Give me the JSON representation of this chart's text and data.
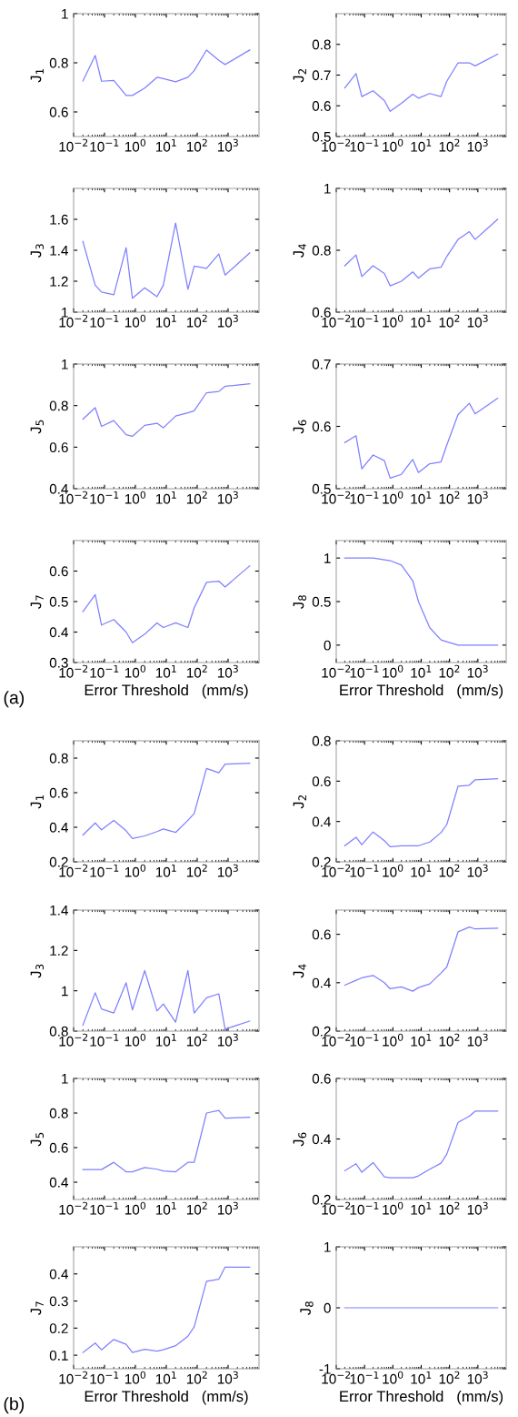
{
  "chart_data": [
    {
      "type": "line",
      "ylabel": "J$_{1}$",
      "log": "x",
      "xlim": [
        0.01,
        10000
      ],
      "ylim": [
        0.5,
        1
      ],
      "yticks": [
        0.6,
        0.8,
        1
      ],
      "xticks": [
        {
          "value": 0.01,
          "label": "10$^{−2}$"
        },
        {
          "value": 0.1,
          "label": "10$^{−1}$"
        },
        {
          "value": 1,
          "label": "10$^{0}$"
        },
        {
          "value": 10,
          "label": "10$^{1}$"
        },
        {
          "value": 100,
          "label": "10$^{2}$"
        },
        {
          "value": 1000,
          "label": "10$^{3}$"
        }
      ],
      "x": [
        0.02,
        0.05,
        0.08,
        0.2,
        0.5,
        0.8,
        2,
        5,
        8,
        20,
        50,
        80,
        200,
        500,
        800,
        5000
      ],
      "series": [
        {
          "color": "#7f7fff",
          "values": [
            0.726,
            0.83,
            0.725,
            0.728,
            0.667,
            0.667,
            0.697,
            0.741,
            0.736,
            0.723,
            0.741,
            0.768,
            0.852,
            0.81,
            0.793,
            0.852
          ]
        }
      ]
    },
    {
      "type": "line",
      "ylabel": "J$_{2}$",
      "log": "x",
      "xlim": [
        0.01,
        10000
      ],
      "ylim": [
        0.5,
        0.9
      ],
      "yticks": [
        0.5,
        0.6,
        0.7,
        0.8
      ],
      "xticks": [
        {
          "value": 0.01,
          "label": "10$^{−2}$"
        },
        {
          "value": 0.1,
          "label": "10$^{−1}$"
        },
        {
          "value": 1,
          "label": "10$^{0}$"
        },
        {
          "value": 10,
          "label": "10$^{1}$"
        },
        {
          "value": 100,
          "label": "10$^{2}$"
        },
        {
          "value": 1000,
          "label": "10$^{3}$"
        }
      ],
      "x": [
        0.02,
        0.05,
        0.08,
        0.2,
        0.5,
        0.8,
        2,
        5,
        8,
        20,
        50,
        80,
        200,
        500,
        800,
        5000
      ],
      "series": [
        {
          "color": "#7f7fff",
          "values": [
            0.658,
            0.705,
            0.63,
            0.649,
            0.617,
            0.582,
            0.608,
            0.638,
            0.625,
            0.64,
            0.63,
            0.68,
            0.74,
            0.74,
            0.73,
            0.768
          ]
        }
      ]
    },
    {
      "type": "line",
      "ylabel": "J$_{3}$",
      "log": "x",
      "xlim": [
        0.01,
        10000
      ],
      "ylim": [
        1,
        1.8
      ],
      "yticks": [
        1,
        1.2,
        1.4,
        1.6
      ],
      "xticks": [
        {
          "value": 0.01,
          "label": "10$^{−2}$"
        },
        {
          "value": 0.1,
          "label": "10$^{−1}$"
        },
        {
          "value": 1,
          "label": "10$^{0}$"
        },
        {
          "value": 10,
          "label": "10$^{1}$"
        },
        {
          "value": 100,
          "label": "10$^{2}$"
        },
        {
          "value": 1000,
          "label": "10$^{3}$"
        }
      ],
      "x": [
        0.02,
        0.05,
        0.08,
        0.2,
        0.5,
        0.8,
        2,
        5,
        8,
        20,
        50,
        80,
        200,
        500,
        800,
        5000
      ],
      "series": [
        {
          "color": "#7f7fff",
          "values": [
            1.457,
            1.174,
            1.13,
            1.113,
            1.417,
            1.09,
            1.157,
            1.1,
            1.174,
            1.576,
            1.148,
            1.298,
            1.283,
            1.376,
            1.24,
            1.383
          ]
        }
      ]
    },
    {
      "type": "line",
      "ylabel": "J$_{4}$",
      "log": "x",
      "xlim": [
        0.01,
        10000
      ],
      "ylim": [
        0.6,
        1
      ],
      "yticks": [
        0.6,
        0.8,
        1
      ],
      "xticks": [
        {
          "value": 0.01,
          "label": "10$^{−2}$"
        },
        {
          "value": 0.1,
          "label": "10$^{−1}$"
        },
        {
          "value": 1,
          "label": "10$^{0}$"
        },
        {
          "value": 10,
          "label": "10$^{1}$"
        },
        {
          "value": 100,
          "label": "10$^{2}$"
        },
        {
          "value": 1000,
          "label": "10$^{3}$"
        }
      ],
      "x": [
        0.02,
        0.05,
        0.08,
        0.2,
        0.5,
        0.8,
        2,
        5,
        8,
        20,
        50,
        80,
        200,
        500,
        800,
        5000
      ],
      "series": [
        {
          "color": "#7f7fff",
          "values": [
            0.75,
            0.785,
            0.715,
            0.75,
            0.725,
            0.685,
            0.7,
            0.73,
            0.71,
            0.74,
            0.745,
            0.78,
            0.835,
            0.86,
            0.835,
            0.9
          ]
        }
      ]
    },
    {
      "type": "line",
      "ylabel": "J$_{5}$",
      "log": "x",
      "xlim": [
        0.01,
        10000
      ],
      "ylim": [
        0.4,
        1
      ],
      "yticks": [
        0.4,
        0.6,
        0.8,
        1
      ],
      "xticks": [
        {
          "value": 0.01,
          "label": "10$^{−2}$"
        },
        {
          "value": 0.1,
          "label": "10$^{−1}$"
        },
        {
          "value": 1,
          "label": "10$^{0}$"
        },
        {
          "value": 10,
          "label": "10$^{1}$"
        },
        {
          "value": 100,
          "label": "10$^{2}$"
        },
        {
          "value": 1000,
          "label": "10$^{3}$"
        }
      ],
      "x": [
        0.02,
        0.05,
        0.08,
        0.2,
        0.5,
        0.8,
        2,
        5,
        8,
        20,
        50,
        80,
        200,
        500,
        800,
        5000
      ],
      "series": [
        {
          "color": "#7f7fff",
          "values": [
            0.735,
            0.79,
            0.7,
            0.728,
            0.66,
            0.652,
            0.705,
            0.715,
            0.693,
            0.75,
            0.765,
            0.775,
            0.862,
            0.868,
            0.893,
            0.905
          ]
        }
      ]
    },
    {
      "type": "line",
      "ylabel": "J$_{6}$",
      "log": "x",
      "xlim": [
        0.01,
        10000
      ],
      "ylim": [
        0.5,
        0.7
      ],
      "yticks": [
        0.5,
        0.6,
        0.7
      ],
      "xticks": [
        {
          "value": 0.01,
          "label": "10$^{−2}$"
        },
        {
          "value": 0.1,
          "label": "10$^{−1}$"
        },
        {
          "value": 1,
          "label": "10$^{0}$"
        },
        {
          "value": 10,
          "label": "10$^{1}$"
        },
        {
          "value": 100,
          "label": "10$^{2}$"
        },
        {
          "value": 1000,
          "label": "10$^{3}$"
        }
      ],
      "x": [
        0.02,
        0.05,
        0.08,
        0.2,
        0.5,
        0.8,
        2,
        5,
        8,
        20,
        50,
        80,
        200,
        500,
        800,
        5000
      ],
      "series": [
        {
          "color": "#7f7fff",
          "values": [
            0.574,
            0.585,
            0.532,
            0.554,
            0.545,
            0.517,
            0.523,
            0.547,
            0.526,
            0.54,
            0.543,
            0.57,
            0.619,
            0.637,
            0.62,
            0.645
          ]
        }
      ]
    },
    {
      "type": "line",
      "ylabel": "J$_{7}$",
      "xlabel": "Error Threshold   (mm/s)",
      "annotations": [
        "(a)"
      ],
      "log": "x",
      "xlim": [
        0.01,
        10000
      ],
      "ylim": [
        0.3,
        0.7
      ],
      "yticks": [
        0.3,
        0.4,
        0.5,
        0.6
      ],
      "xticks": [
        {
          "value": 0.01,
          "label": "10$^{−2}$"
        },
        {
          "value": 0.1,
          "label": "10$^{−1}$"
        },
        {
          "value": 1,
          "label": "10$^{0}$"
        },
        {
          "value": 10,
          "label": "10$^{1}$"
        },
        {
          "value": 100,
          "label": "10$^{2}$"
        },
        {
          "value": 1000,
          "label": "10$^{3}$"
        }
      ],
      "x": [
        0.02,
        0.05,
        0.08,
        0.2,
        0.5,
        0.8,
        2,
        5,
        8,
        20,
        50,
        80,
        200,
        500,
        800,
        5000
      ],
      "series": [
        {
          "color": "#7f7fff",
          "values": [
            0.467,
            0.523,
            0.423,
            0.441,
            0.4,
            0.365,
            0.393,
            0.43,
            0.415,
            0.43,
            0.415,
            0.48,
            0.563,
            0.567,
            0.548,
            0.617
          ]
        }
      ]
    },
    {
      "type": "line",
      "ylabel": "J$_{8}$",
      "xlabel": "Error Threshold   (mm/s)",
      "log": "x",
      "xlim": [
        0.01,
        10000
      ],
      "ylim": [
        -0.2,
        1.2
      ],
      "yticks": [
        0,
        0.5,
        1
      ],
      "xticks": [
        {
          "value": 0.01,
          "label": "10$^{−2}$"
        },
        {
          "value": 0.1,
          "label": "10$^{−1}$"
        },
        {
          "value": 1,
          "label": "10$^{0}$"
        },
        {
          "value": 10,
          "label": "10$^{1}$"
        },
        {
          "value": 100,
          "label": "10$^{2}$"
        },
        {
          "value": 1000,
          "label": "10$^{3}$"
        }
      ],
      "x": [
        0.02,
        0.05,
        0.08,
        0.2,
        0.5,
        0.8,
        2,
        5,
        8,
        20,
        50,
        80,
        200,
        500,
        800,
        5000
      ],
      "series": [
        {
          "color": "#7f7fff",
          "values": [
            1,
            1,
            1,
            1,
            0.98,
            0.97,
            0.92,
            0.74,
            0.5,
            0.2,
            0.06,
            0.04,
            0,
            0,
            0,
            0
          ]
        }
      ]
    },
    {
      "type": "line",
      "ylabel": "J$_{1}$",
      "log": "x",
      "xlim": [
        0.01,
        10000
      ],
      "ylim": [
        0.2,
        0.9
      ],
      "yticks": [
        0.2,
        0.4,
        0.6,
        0.8
      ],
      "xticks": [
        {
          "value": 0.01,
          "label": "10$^{−2}$"
        },
        {
          "value": 0.1,
          "label": "10$^{−1}$"
        },
        {
          "value": 1,
          "label": "10$^{0}$"
        },
        {
          "value": 10,
          "label": "10$^{1}$"
        },
        {
          "value": 100,
          "label": "10$^{2}$"
        },
        {
          "value": 1000,
          "label": "10$^{3}$"
        }
      ],
      "x": [
        0.02,
        0.05,
        0.08,
        0.2,
        0.5,
        0.8,
        2,
        5,
        8,
        20,
        50,
        80,
        200,
        500,
        800,
        5000
      ],
      "series": [
        {
          "color": "#7f7fff",
          "values": [
            0.355,
            0.425,
            0.385,
            0.44,
            0.38,
            0.335,
            0.35,
            0.375,
            0.39,
            0.37,
            0.44,
            0.48,
            0.74,
            0.715,
            0.765,
            0.77
          ]
        }
      ]
    },
    {
      "type": "line",
      "ylabel": "J$_{2}$",
      "log": "x",
      "xlim": [
        0.01,
        10000
      ],
      "ylim": [
        0.2,
        0.8
      ],
      "yticks": [
        0.2,
        0.4,
        0.6,
        0.8
      ],
      "xticks": [
        {
          "value": 0.01,
          "label": "10$^{−2}$"
        },
        {
          "value": 0.1,
          "label": "10$^{−1}$"
        },
        {
          "value": 1,
          "label": "10$^{0}$"
        },
        {
          "value": 10,
          "label": "10$^{1}$"
        },
        {
          "value": 100,
          "label": "10$^{2}$"
        },
        {
          "value": 1000,
          "label": "10$^{3}$"
        }
      ],
      "x": [
        0.02,
        0.05,
        0.08,
        0.2,
        0.5,
        0.8,
        2,
        5,
        8,
        20,
        50,
        80,
        200,
        500,
        800,
        5000
      ],
      "series": [
        {
          "color": "#7f7fff",
          "values": [
            0.28,
            0.322,
            0.285,
            0.348,
            0.305,
            0.275,
            0.28,
            0.28,
            0.28,
            0.298,
            0.345,
            0.385,
            0.575,
            0.58,
            0.607,
            0.612
          ]
        }
      ]
    },
    {
      "type": "line",
      "ylabel": "J$_{3}$",
      "log": "x",
      "xlim": [
        0.01,
        10000
      ],
      "ylim": [
        0.8,
        1.4
      ],
      "yticks": [
        0.8,
        1,
        1.2,
        1.4
      ],
      "xticks": [
        {
          "value": 0.01,
          "label": "10$^{−2}$"
        },
        {
          "value": 0.1,
          "label": "10$^{−1}$"
        },
        {
          "value": 1,
          "label": "10$^{0}$"
        },
        {
          "value": 10,
          "label": "10$^{1}$"
        },
        {
          "value": 100,
          "label": "10$^{2}$"
        },
        {
          "value": 1000,
          "label": "10$^{3}$"
        }
      ],
      "x": [
        0.02,
        0.05,
        0.08,
        0.2,
        0.5,
        0.8,
        2,
        5,
        8,
        20,
        50,
        80,
        200,
        500,
        800,
        5000
      ],
      "series": [
        {
          "color": "#7f7fff",
          "values": [
            0.83,
            0.99,
            0.91,
            0.89,
            1.04,
            0.905,
            1.1,
            0.9,
            0.935,
            0.845,
            1.1,
            0.89,
            0.965,
            0.985,
            0.81,
            0.85
          ]
        }
      ]
    },
    {
      "type": "line",
      "ylabel": "J$_{4}$",
      "log": "x",
      "xlim": [
        0.01,
        10000
      ],
      "ylim": [
        0.2,
        0.7
      ],
      "yticks": [
        0.2,
        0.4,
        0.6
      ],
      "xticks": [
        {
          "value": 0.01,
          "label": "10$^{−2}$"
        },
        {
          "value": 0.1,
          "label": "10$^{−1}$"
        },
        {
          "value": 1,
          "label": "10$^{0}$"
        },
        {
          "value": 10,
          "label": "10$^{1}$"
        },
        {
          "value": 100,
          "label": "10$^{2}$"
        },
        {
          "value": 1000,
          "label": "10$^{3}$"
        }
      ],
      "x": [
        0.02,
        0.05,
        0.08,
        0.2,
        0.5,
        0.8,
        2,
        5,
        8,
        20,
        50,
        80,
        200,
        500,
        800,
        5000
      ],
      "series": [
        {
          "color": "#7f7fff",
          "values": [
            0.39,
            0.41,
            0.42,
            0.43,
            0.4,
            0.375,
            0.383,
            0.365,
            0.38,
            0.395,
            0.44,
            0.465,
            0.61,
            0.63,
            0.622,
            0.625
          ]
        }
      ]
    },
    {
      "type": "line",
      "ylabel": "J$_{5}$",
      "log": "x",
      "xlim": [
        0.01,
        10000
      ],
      "ylim": [
        0.3,
        1
      ],
      "yticks": [
        0.4,
        0.6,
        0.8,
        1
      ],
      "xticks": [
        {
          "value": 0.01,
          "label": "10$^{−2}$"
        },
        {
          "value": 0.1,
          "label": "10$^{−1}$"
        },
        {
          "value": 1,
          "label": "10$^{0}$"
        },
        {
          "value": 10,
          "label": "10$^{1}$"
        },
        {
          "value": 100,
          "label": "10$^{2}$"
        },
        {
          "value": 1000,
          "label": "10$^{3}$"
        }
      ],
      "x": [
        0.02,
        0.05,
        0.08,
        0.2,
        0.5,
        0.8,
        2,
        5,
        8,
        20,
        50,
        80,
        200,
        500,
        800,
        5000
      ],
      "series": [
        {
          "color": "#7f7fff",
          "values": [
            0.473,
            0.473,
            0.473,
            0.515,
            0.46,
            0.46,
            0.485,
            0.475,
            0.465,
            0.46,
            0.515,
            0.515,
            0.8,
            0.815,
            0.77,
            0.775
          ]
        }
      ]
    },
    {
      "type": "line",
      "ylabel": "J$_{6}$",
      "log": "x",
      "xlim": [
        0.01,
        10000
      ],
      "ylim": [
        0.2,
        0.6
      ],
      "yticks": [
        0.2,
        0.4,
        0.6
      ],
      "xticks": [
        {
          "value": 0.01,
          "label": "10$^{−2}$"
        },
        {
          "value": 0.1,
          "label": "10$^{−1}$"
        },
        {
          "value": 1,
          "label": "10$^{0}$"
        },
        {
          "value": 10,
          "label": "10$^{1}$"
        },
        {
          "value": 100,
          "label": "10$^{2}$"
        },
        {
          "value": 1000,
          "label": "10$^{3}$"
        }
      ],
      "x": [
        0.02,
        0.05,
        0.08,
        0.2,
        0.5,
        0.8,
        2,
        5,
        8,
        20,
        50,
        80,
        200,
        500,
        800,
        5000
      ],
      "series": [
        {
          "color": "#7f7fff",
          "values": [
            0.295,
            0.318,
            0.29,
            0.322,
            0.275,
            0.272,
            0.272,
            0.272,
            0.278,
            0.3,
            0.32,
            0.35,
            0.455,
            0.475,
            0.492,
            0.492
          ]
        }
      ]
    },
    {
      "type": "line",
      "ylabel": "J$_{7}$",
      "xlabel": "Error Threshold   (mm/s)",
      "annotations": [
        "(b)"
      ],
      "log": "x",
      "xlim": [
        0.01,
        10000
      ],
      "ylim": [
        0.05,
        0.5
      ],
      "yticks": [
        0.1,
        0.2,
        0.3,
        0.4
      ],
      "xticks": [
        {
          "value": 0.01,
          "label": "10$^{−2}$"
        },
        {
          "value": 0.1,
          "label": "10$^{−1}$"
        },
        {
          "value": 1,
          "label": "10$^{0}$"
        },
        {
          "value": 10,
          "label": "10$^{1}$"
        },
        {
          "value": 100,
          "label": "10$^{2}$"
        },
        {
          "value": 1000,
          "label": "10$^{3}$"
        }
      ],
      "x": [
        0.02,
        0.05,
        0.08,
        0.2,
        0.5,
        0.8,
        2,
        5,
        8,
        20,
        50,
        80,
        200,
        500,
        800,
        5000
      ],
      "series": [
        {
          "color": "#7f7fff",
          "values": [
            0.11,
            0.145,
            0.12,
            0.158,
            0.14,
            0.11,
            0.122,
            0.115,
            0.12,
            0.135,
            0.17,
            0.205,
            0.373,
            0.38,
            0.425,
            0.425
          ]
        }
      ]
    },
    {
      "type": "line",
      "ylabel": "J$_{8}$",
      "xlabel": "Error Threshold   (mm/s)",
      "log": "x",
      "xlim": [
        0.01,
        10000
      ],
      "ylim": [
        -1,
        1
      ],
      "yticks": [
        -1,
        0,
        1
      ],
      "xticks": [
        {
          "value": 0.01,
          "label": "10$^{−2}$"
        },
        {
          "value": 0.1,
          "label": "10$^{−1}$"
        },
        {
          "value": 1,
          "label": "10$^{0}$"
        },
        {
          "value": 10,
          "label": "10$^{1}$"
        },
        {
          "value": 100,
          "label": "10$^{2}$"
        },
        {
          "value": 1000,
          "label": "10$^{3}$"
        }
      ],
      "x": [
        0.02,
        0.05,
        0.08,
        0.2,
        0.5,
        0.8,
        2,
        5,
        8,
        20,
        50,
        80,
        200,
        500,
        800,
        5000
      ],
      "series": [
        {
          "color": "#7f7fff",
          "values": [
            0,
            0,
            0,
            0,
            0,
            0,
            0,
            0,
            0,
            0,
            0,
            0,
            0,
            0,
            0,
            0
          ]
        }
      ]
    }
  ]
}
